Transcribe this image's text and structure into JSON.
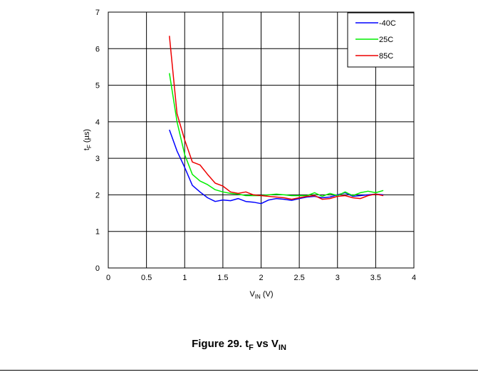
{
  "figure": {
    "caption_prefix": "Figure 29. t",
    "caption_sub1": "F",
    "caption_mid": " vs V",
    "caption_sub2": "IN"
  },
  "chart_data": {
    "type": "line",
    "xlabel_main": "V",
    "xlabel_sub": "IN",
    "xlabel_unit": " (V)",
    "ylabel_main": "t",
    "ylabel_sub": "F",
    "ylabel_unit": " (µs)",
    "xlim": [
      0,
      4
    ],
    "ylim": [
      0,
      7
    ],
    "xticks": [
      "0",
      "0.5",
      "1",
      "1.5",
      "2",
      "2.5",
      "3",
      "3.5",
      "4"
    ],
    "yticks": [
      "0",
      "1",
      "2",
      "3",
      "4",
      "5",
      "6",
      "7"
    ],
    "grid": true,
    "legend_position": "top-right",
    "series": [
      {
        "name": "-40C",
        "color": "#0000ff",
        "x": [
          0.8,
          0.9,
          1.0,
          1.1,
          1.2,
          1.3,
          1.4,
          1.5,
          1.6,
          1.7,
          1.8,
          1.9,
          2.0,
          2.1,
          2.2,
          2.3,
          2.4,
          2.5,
          2.6,
          2.7,
          2.8,
          2.9,
          3.0,
          3.1,
          3.2,
          3.3,
          3.4,
          3.5,
          3.6
        ],
        "y": [
          3.78,
          3.2,
          2.75,
          2.26,
          2.08,
          1.92,
          1.82,
          1.86,
          1.84,
          1.9,
          1.82,
          1.8,
          1.76,
          1.86,
          1.9,
          1.88,
          1.85,
          1.9,
          1.94,
          1.96,
          1.92,
          1.94,
          2.0,
          2.06,
          1.96,
          1.98,
          2.0,
          2.02,
          2.0
        ]
      },
      {
        "name": "25C",
        "color": "#00ee00",
        "x": [
          0.8,
          0.9,
          1.0,
          1.1,
          1.2,
          1.3,
          1.4,
          1.5,
          1.6,
          1.7,
          1.8,
          1.9,
          2.0,
          2.1,
          2.2,
          2.3,
          2.4,
          2.5,
          2.6,
          2.7,
          2.8,
          2.9,
          3.0,
          3.1,
          3.2,
          3.3,
          3.4,
          3.5,
          3.6
        ],
        "y": [
          5.33,
          4.0,
          3.1,
          2.56,
          2.38,
          2.28,
          2.14,
          2.08,
          2.04,
          2.02,
          1.98,
          1.98,
          1.98,
          2.0,
          2.02,
          2.0,
          1.98,
          1.98,
          1.98,
          2.06,
          1.96,
          2.04,
          1.98,
          2.08,
          1.98,
          2.06,
          2.1,
          2.06,
          2.12
        ]
      },
      {
        "name": "85C",
        "color": "#ee0000",
        "x": [
          0.8,
          0.9,
          1.0,
          1.1,
          1.2,
          1.3,
          1.4,
          1.5,
          1.6,
          1.7,
          1.8,
          1.9,
          2.0,
          2.1,
          2.2,
          2.3,
          2.4,
          2.5,
          2.6,
          2.7,
          2.8,
          2.9,
          3.0,
          3.1,
          3.2,
          3.3,
          3.4,
          3.5,
          3.6
        ],
        "y": [
          6.35,
          4.22,
          3.5,
          2.9,
          2.82,
          2.56,
          2.32,
          2.24,
          2.08,
          2.04,
          2.08,
          2.0,
          1.98,
          1.96,
          1.94,
          1.92,
          1.88,
          1.92,
          1.96,
          1.98,
          1.88,
          1.9,
          1.96,
          1.98,
          1.92,
          1.9,
          1.98,
          2.02,
          1.98
        ]
      }
    ]
  }
}
